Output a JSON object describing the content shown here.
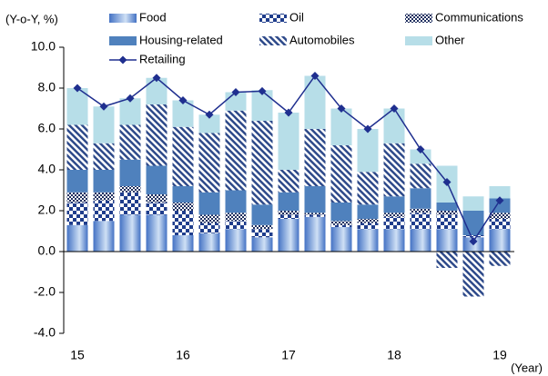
{
  "chart_data": {
    "type": "bar",
    "stacked": true,
    "y_axis_label": "(Y-o-Y, %)",
    "x_axis_label": "(Year)",
    "categories": [
      "15",
      null,
      null,
      null,
      "16",
      null,
      null,
      null,
      "17",
      null,
      null,
      null,
      "18",
      null,
      null,
      null,
      "19"
    ],
    "ylim": [
      -4,
      10
    ],
    "yticks": [
      {
        "value": -4,
        "label": "-4.0"
      },
      {
        "value": -2,
        "label": "-2.0"
      },
      {
        "value": 0,
        "label": "0.0"
      },
      {
        "value": 2,
        "label": "2.0"
      },
      {
        "value": 4,
        "label": "4.0"
      },
      {
        "value": 6,
        "label": "6.0"
      },
      {
        "value": 8,
        "label": "8.0"
      },
      {
        "value": 10,
        "label": "10.0"
      }
    ],
    "series": [
      {
        "name": "Food",
        "color": "#4472c4",
        "values": [
          1.3,
          1.5,
          1.8,
          1.8,
          0.8,
          0.9,
          1.1,
          0.7,
          1.6,
          1.7,
          1.2,
          1.1,
          1.1,
          1.1,
          1.1,
          0.7,
          1.1
        ]
      },
      {
        "name": "Oil",
        "color": "#1f3d8c",
        "values": [
          1.1,
          1.0,
          1.1,
          0.6,
          1.2,
          0.5,
          0.4,
          0.4,
          0.2,
          0.1,
          0.1,
          0.3,
          0.6,
          0.8,
          0.7,
          0.1,
          0.5
        ]
      },
      {
        "name": "Communications",
        "color": "#1f2f5f",
        "values": [
          0.5,
          0.4,
          0.3,
          0.4,
          0.4,
          0.4,
          0.4,
          0.2,
          0.2,
          0.1,
          0.2,
          0.2,
          0.2,
          0.2,
          0.2,
          0.0,
          0.3
        ]
      },
      {
        "name": "Housing-related",
        "color": "#4f81bd",
        "values": [
          1.1,
          1.1,
          1.3,
          1.4,
          0.8,
          1.1,
          1.1,
          1.0,
          0.9,
          1.3,
          0.9,
          0.7,
          0.8,
          1.0,
          0.4,
          1.2,
          0.7
        ]
      },
      {
        "name": "Automobiles",
        "color": "#2e4a8a",
        "values": [
          2.2,
          1.3,
          1.7,
          3.0,
          2.9,
          2.9,
          3.9,
          4.1,
          1.1,
          2.8,
          2.8,
          1.6,
          2.6,
          1.2,
          -0.8,
          -2.2,
          -0.7
        ]
      },
      {
        "name": "Other",
        "color": "#b7dee8",
        "values": [
          1.8,
          1.8,
          1.3,
          1.3,
          1.3,
          0.9,
          0.9,
          1.5,
          2.8,
          2.6,
          1.8,
          2.1,
          1.7,
          0.7,
          1.8,
          0.7,
          0.6
        ]
      },
      {
        "name": "Retailing",
        "type": "line",
        "color": "#1f2f8f",
        "values": [
          8.0,
          7.1,
          7.5,
          8.5,
          7.4,
          6.7,
          7.8,
          7.85,
          6.8,
          8.6,
          7.0,
          6.0,
          7.0,
          5.0,
          3.4,
          0.5,
          2.5
        ]
      }
    ]
  }
}
